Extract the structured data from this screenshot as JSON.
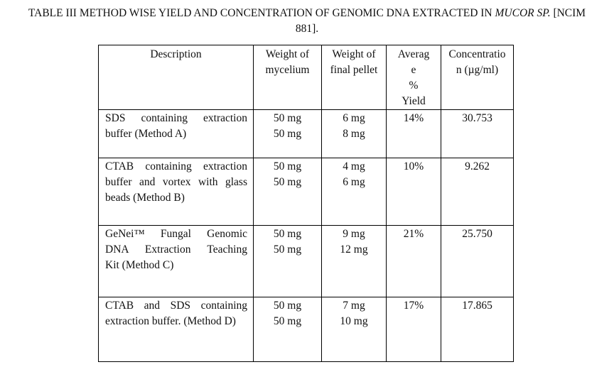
{
  "caption": {
    "line1_pre": "TABLE III METHOD WISE YIELD AND CONCENTRATION OF GENOMIC DNA EXTRACTED IN ",
    "line1_italic": "MUCOR SP.",
    "line1_post": " [NCIM",
    "line2": "881]."
  },
  "table": {
    "headers": {
      "description": "Description",
      "weight_mycelium": [
        "Weight of",
        "mycelium"
      ],
      "weight_pellet": [
        "Weight of",
        "final pellet"
      ],
      "yield": [
        "Averag",
        "e",
        "%",
        "Yield"
      ],
      "concentration": [
        "Concentratio",
        "n (µg/ml)"
      ]
    },
    "rows": [
      {
        "description": [
          "SDS containing extraction",
          "buffer (Method A)"
        ],
        "mycelium": [
          "50 mg",
          "50 mg"
        ],
        "pellet": [
          "6 mg",
          "8 mg"
        ],
        "yield": "14%",
        "concentration": "30.753"
      },
      {
        "description": [
          "CTAB containing extraction",
          "buffer and vortex with glass",
          "beads (Method B)"
        ],
        "mycelium": [
          "50 mg",
          "50 mg"
        ],
        "pellet": [
          "4 mg",
          "6 mg"
        ],
        "yield": "10%",
        "concentration": "9.262"
      },
      {
        "description": [
          "GeNei™ Fungal Genomic",
          "DNA Extraction Teaching",
          "Kit (Method C)"
        ],
        "mycelium": [
          "50 mg",
          "50 mg"
        ],
        "pellet": [
          "9 mg",
          "12 mg"
        ],
        "yield": "21%",
        "concentration": "25.750"
      },
      {
        "description": [
          "CTAB and SDS containing",
          "extraction buffer. (Method D)"
        ],
        "mycelium": [
          "50 mg",
          "50 mg"
        ],
        "pellet": [
          "7 mg",
          "10 mg"
        ],
        "yield": "17%",
        "concentration": "17.865"
      }
    ]
  }
}
